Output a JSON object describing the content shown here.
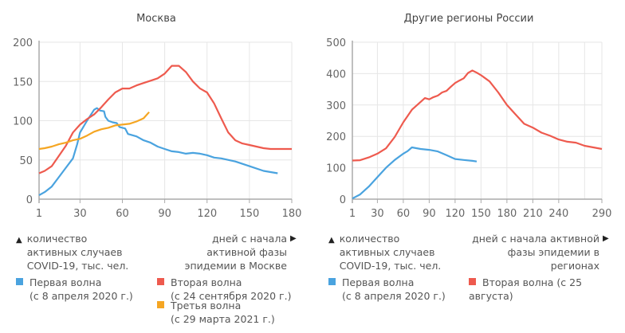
{
  "chart_data": [
    {
      "type": "line",
      "title": "Москва",
      "xlabel": "дней с начала активной фазы эпидемии в Москве",
      "ylabel": "количество активных случаев COVID-19, тыс. чел.",
      "xlim": [
        1,
        180
      ],
      "ylim": [
        0,
        200
      ],
      "xticks": [
        1,
        30,
        60,
        90,
        120,
        150,
        180
      ],
      "yticks": [
        0,
        50,
        100,
        150,
        200
      ],
      "grid": true,
      "legend": [
        {
          "label": "Первая волна",
          "sub": "(с 8 апреля 2020 г.)",
          "color": "#4aa3df"
        },
        {
          "label": "Вторая волна",
          "sub": "(с 24 сентября 2020 г.)",
          "color": "#ee5a4e"
        },
        {
          "label": "Третья волна",
          "sub": "(с 29 марта 2021 г.)",
          "color": "#f5a623"
        }
      ],
      "series": [
        {
          "name": "Первая волна",
          "color": "#4aa3df",
          "x": [
            1,
            5,
            10,
            15,
            20,
            25,
            28,
            30,
            35,
            40,
            42,
            44,
            47,
            48,
            50,
            53,
            56,
            58,
            62,
            64,
            70,
            75,
            80,
            85,
            90,
            95,
            100,
            105,
            110,
            115,
            120,
            125,
            130,
            140,
            150,
            160,
            170
          ],
          "y": [
            5,
            9,
            16,
            28,
            40,
            52,
            70,
            85,
            100,
            114,
            116,
            113,
            112,
            105,
            100,
            98,
            97,
            92,
            90,
            83,
            80,
            75,
            72,
            67,
            64,
            61,
            60,
            58,
            59,
            58,
            56,
            53,
            52,
            48,
            42,
            36,
            33
          ]
        },
        {
          "name": "Вторая волна",
          "color": "#ee5a4e",
          "x": [
            1,
            5,
            10,
            15,
            20,
            25,
            30,
            35,
            40,
            45,
            50,
            55,
            60,
            65,
            70,
            75,
            80,
            85,
            90,
            95,
            100,
            105,
            110,
            115,
            120,
            125,
            130,
            135,
            140,
            145,
            150,
            155,
            160,
            165,
            170,
            175,
            180
          ],
          "y": [
            33,
            36,
            42,
            55,
            68,
            85,
            95,
            102,
            108,
            117,
            127,
            136,
            141,
            141,
            145,
            148,
            151,
            154,
            160,
            170,
            170,
            162,
            150,
            141,
            136,
            122,
            103,
            85,
            75,
            71,
            69,
            67,
            65,
            64,
            64,
            64,
            64
          ]
        },
        {
          "name": "Третья волна",
          "color": "#f5a623",
          "x": [
            1,
            5,
            10,
            15,
            20,
            25,
            30,
            35,
            40,
            45,
            50,
            55,
            60,
            65,
            70,
            75,
            79
          ],
          "y": [
            64,
            65,
            67,
            70,
            72,
            75,
            77,
            81,
            86,
            89,
            91,
            94,
            95,
            96,
            99,
            103,
            111
          ]
        }
      ]
    },
    {
      "type": "line",
      "title": "Другие регионы России",
      "xlabel": "дней с начала активной фазы эпидемии в регионах",
      "ylabel": "количество активных случаев COVID-19, тыс. чел.",
      "xlim": [
        1,
        290
      ],
      "ylim": [
        0,
        500
      ],
      "xticks": [
        1,
        30,
        60,
        90,
        120,
        150,
        180,
        210,
        240,
        290
      ],
      "yticks": [
        0,
        100,
        200,
        300,
        400,
        500
      ],
      "grid": true,
      "legend": [
        {
          "label": "Первая волна",
          "sub": "(с 8 апреля 2020 г.)",
          "color": "#4aa3df"
        },
        {
          "label": "Вторая волна (с 25 августа)",
          "sub": "",
          "color": "#ee5a4e"
        }
      ],
      "series": [
        {
          "name": "Первая волна",
          "color": "#4aa3df",
          "x": [
            1,
            10,
            20,
            30,
            40,
            50,
            60,
            65,
            70,
            80,
            90,
            100,
            110,
            120,
            130,
            140,
            145
          ],
          "y": [
            2,
            15,
            40,
            70,
            100,
            125,
            145,
            153,
            165,
            160,
            157,
            152,
            140,
            128,
            125,
            122,
            120
          ]
        },
        {
          "name": "Вторая волна (с 25 августа)",
          "color": "#ee5a4e",
          "x": [
            1,
            10,
            20,
            30,
            40,
            50,
            60,
            65,
            70,
            80,
            85,
            90,
            95,
            100,
            105,
            110,
            115,
            120,
            125,
            130,
            135,
            140,
            145,
            150,
            155,
            160,
            170,
            180,
            190,
            200,
            210,
            220,
            230,
            240,
            250,
            260,
            270,
            280,
            290
          ],
          "y": [
            123,
            124,
            133,
            145,
            162,
            198,
            245,
            265,
            285,
            310,
            322,
            318,
            325,
            330,
            340,
            345,
            358,
            370,
            378,
            385,
            402,
            410,
            403,
            395,
            385,
            375,
            340,
            300,
            270,
            240,
            228,
            212,
            202,
            190,
            183,
            180,
            170,
            165,
            160
          ]
        }
      ]
    }
  ]
}
